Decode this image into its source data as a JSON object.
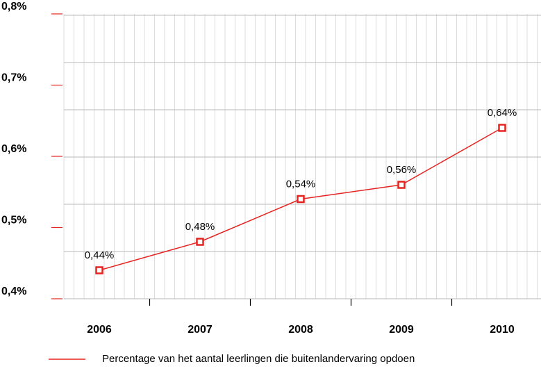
{
  "chart_data": {
    "type": "line",
    "categories": [
      "2006",
      "2007",
      "2008",
      "2009",
      "2010"
    ],
    "series": [
      {
        "name": "Percentage van het aantal leerlingen die buitenlandervaring opdoen",
        "color": "#e52421",
        "values": [
          0.44,
          0.48,
          0.54,
          0.56,
          0.64
        ],
        "value_labels": [
          "0,44%",
          "0,48%",
          "0,54%",
          "0,56%",
          "0,64%"
        ]
      }
    ],
    "ylim": [
      0.4,
      0.8
    ],
    "yticks": [
      {
        "value": 0.4,
        "label": "0,4%"
      },
      {
        "value": 0.5,
        "label": "0,5%"
      },
      {
        "value": 0.6,
        "label": "0,6%"
      },
      {
        "value": 0.7,
        "label": "0,7%"
      },
      {
        "value": 0.8,
        "label": "0,8%"
      }
    ],
    "legend": "bottom"
  }
}
